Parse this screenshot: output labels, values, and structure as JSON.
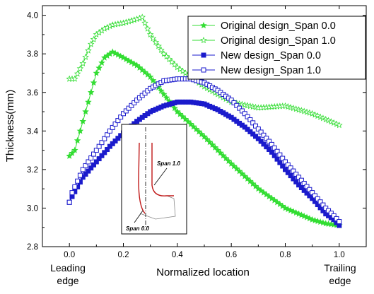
{
  "chart_data": {
    "type": "line",
    "xlabel": "Normalized location",
    "ylabel": "Thickness(mm)",
    "xlim": [
      -0.1,
      1.1
    ],
    "ylim": [
      2.8,
      4.05
    ],
    "x_ticks": [
      "0.0",
      "0.2",
      "0.4",
      "0.6",
      "0.8",
      "1.0"
    ],
    "y_ticks": [
      "2.8",
      "3.0",
      "3.2",
      "3.4",
      "3.6",
      "3.8",
      "4.0"
    ],
    "x_end_labels": {
      "left": [
        "Leading",
        "edge"
      ],
      "right": [
        "Trailing",
        "edge"
      ]
    },
    "legend_position": "top-right",
    "series": [
      {
        "name": "Original design_Span 0.0",
        "color": "#33dd33",
        "marker": "star-filled",
        "x": [
          0.0,
          0.02,
          0.05,
          0.08,
          0.1,
          0.13,
          0.16,
          0.2,
          0.25,
          0.3,
          0.4,
          0.5,
          0.6,
          0.7,
          0.8,
          0.9,
          0.95,
          1.0
        ],
        "values": [
          3.27,
          3.3,
          3.45,
          3.6,
          3.7,
          3.78,
          3.81,
          3.78,
          3.74,
          3.68,
          3.5,
          3.37,
          3.23,
          3.1,
          3.0,
          2.94,
          2.92,
          2.91
        ]
      },
      {
        "name": "Original design_Span 1.0",
        "color": "#33dd33",
        "marker": "star-open",
        "x": [
          0.0,
          0.02,
          0.05,
          0.08,
          0.1,
          0.13,
          0.16,
          0.2,
          0.25,
          0.27,
          0.3,
          0.35,
          0.4,
          0.5,
          0.6,
          0.7,
          0.8,
          0.9,
          1.0
        ],
        "values": [
          3.67,
          3.67,
          3.75,
          3.85,
          3.9,
          3.93,
          3.95,
          3.96,
          3.98,
          3.99,
          3.9,
          3.8,
          3.73,
          3.63,
          3.55,
          3.52,
          3.53,
          3.49,
          3.43
        ]
      },
      {
        "name": "New design_Span 0.0",
        "color": "#1a1acc",
        "marker": "square-filled",
        "x": [
          0.0,
          0.01,
          0.03,
          0.05,
          0.1,
          0.15,
          0.2,
          0.25,
          0.3,
          0.35,
          0.4,
          0.45,
          0.5,
          0.55,
          0.6,
          0.65,
          0.7,
          0.75,
          0.8,
          0.85,
          0.9,
          0.95,
          0.98,
          1.0
        ],
        "values": [
          3.03,
          3.06,
          3.11,
          3.16,
          3.24,
          3.32,
          3.39,
          3.45,
          3.5,
          3.53,
          3.55,
          3.55,
          3.54,
          3.51,
          3.47,
          3.42,
          3.36,
          3.29,
          3.2,
          3.12,
          3.05,
          2.97,
          2.94,
          2.91
        ]
      },
      {
        "name": "New design_Span 1.0",
        "color": "#1a1acc",
        "marker": "square-open",
        "x": [
          0.0,
          0.01,
          0.03,
          0.05,
          0.1,
          0.15,
          0.2,
          0.25,
          0.3,
          0.35,
          0.4,
          0.45,
          0.5,
          0.55,
          0.6,
          0.65,
          0.7,
          0.75,
          0.8,
          0.85,
          0.9,
          0.95,
          0.98,
          1.0
        ],
        "values": [
          3.03,
          3.08,
          3.14,
          3.2,
          3.3,
          3.4,
          3.49,
          3.56,
          3.62,
          3.66,
          3.67,
          3.67,
          3.65,
          3.61,
          3.56,
          3.49,
          3.41,
          3.33,
          3.24,
          3.16,
          3.08,
          3.0,
          2.96,
          2.93
        ]
      }
    ],
    "inset": {
      "labels": {
        "top": "Span 1.0",
        "bottom": "Span 0.0"
      },
      "curve_color": "#c01818"
    }
  }
}
